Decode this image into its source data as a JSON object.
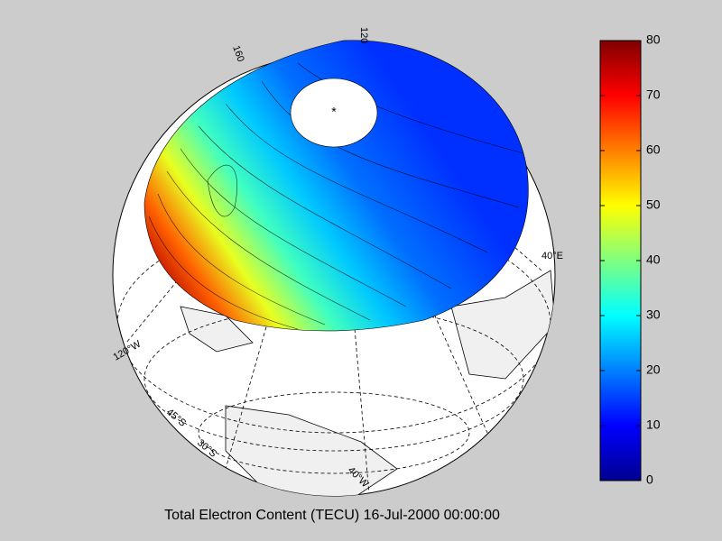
{
  "chart_data": {
    "type": "globe-map",
    "title": "Total Electron Content (TECU)  16-Jul-2000 00:00:00",
    "colorbar": {
      "colormap": "jet",
      "clim": [
        0,
        80
      ],
      "ticks": [
        0,
        10,
        20,
        30,
        40,
        50,
        60,
        70,
        80
      ]
    },
    "map_labels": [
      "120",
      "160",
      "40°E",
      "120°W",
      "45°S",
      "30°S",
      "40°W"
    ]
  }
}
